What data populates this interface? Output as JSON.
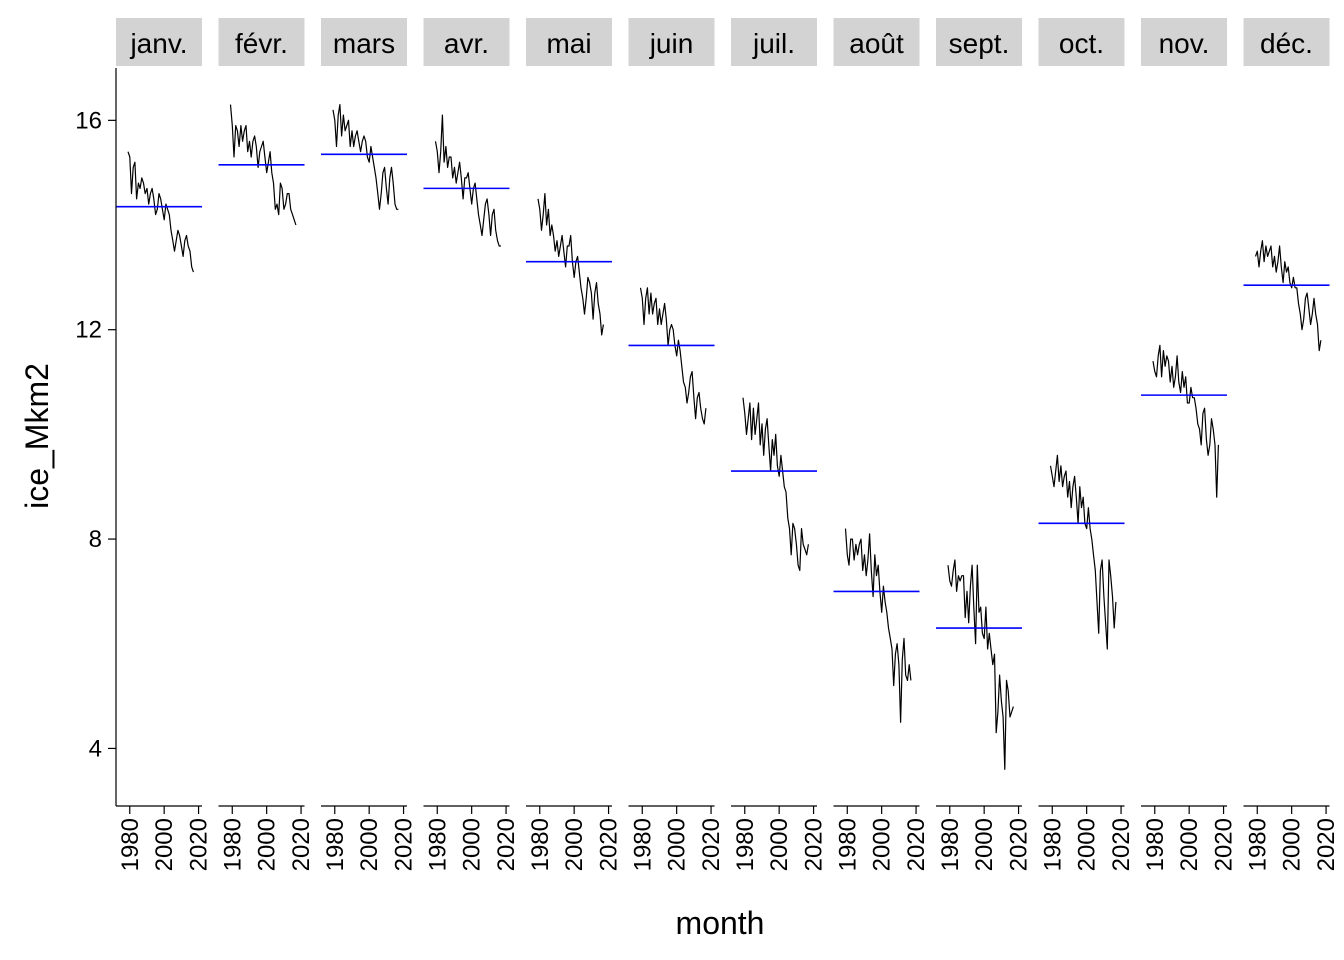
{
  "chart_data": {
    "type": "line",
    "facet_by": "month",
    "xlabel": "month",
    "ylabel": "ice_Mkm2",
    "y_ticks": [
      4,
      8,
      12,
      16
    ],
    "ylim": [
      2.9,
      17.0
    ],
    "x_ticks": [
      1980,
      2000,
      2020
    ],
    "xlim": [
      1972,
      2022
    ],
    "grid": false,
    "line_color": "#000000",
    "mean_line_color": "#0000ff",
    "strip_color": "#d3d3d3",
    "years": [
      1978,
      1979,
      1980,
      1981,
      1982,
      1983,
      1984,
      1985,
      1986,
      1987,
      1988,
      1989,
      1990,
      1991,
      1992,
      1993,
      1994,
      1995,
      1996,
      1997,
      1998,
      1999,
      2000,
      2001,
      2002,
      2003,
      2004,
      2005,
      2006,
      2007,
      2008,
      2009,
      2010,
      2011,
      2012,
      2013,
      2014,
      2015,
      2016,
      2017,
      2018,
      2019
    ],
    "panels": [
      {
        "label": "janv.",
        "mean": 14.35,
        "values": [
          null,
          15.4,
          15.3,
          14.6,
          15.1,
          15.2,
          14.5,
          14.8,
          14.7,
          14.9,
          14.8,
          14.6,
          14.7,
          14.4,
          14.6,
          14.7,
          14.5,
          14.2,
          14.3,
          14.6,
          14.5,
          14.3,
          14.1,
          14.4,
          14.3,
          14.2,
          13.9,
          13.7,
          13.5,
          13.7,
          13.9,
          13.8,
          13.6,
          13.4,
          13.7,
          13.8,
          13.6,
          13.5,
          13.2,
          13.1,
          null,
          null
        ]
      },
      {
        "label": "févr.",
        "mean": 15.15,
        "values": [
          null,
          16.3,
          15.9,
          15.3,
          15.9,
          15.8,
          15.5,
          15.9,
          15.6,
          15.8,
          15.9,
          15.4,
          15.6,
          15.3,
          15.6,
          15.7,
          15.5,
          15.1,
          15.4,
          15.5,
          15.6,
          15.3,
          15.0,
          15.2,
          15.4,
          15.0,
          14.8,
          14.3,
          14.4,
          14.2,
          14.8,
          14.7,
          14.3,
          14.4,
          14.6,
          14.6,
          14.3,
          14.2,
          14.1,
          14.0,
          null,
          null
        ]
      },
      {
        "label": "mars",
        "mean": 15.35,
        "values": [
          null,
          16.2,
          16.0,
          15.5,
          16.1,
          16.3,
          15.7,
          16.1,
          15.8,
          15.9,
          16.0,
          15.5,
          15.8,
          15.5,
          15.7,
          15.8,
          15.6,
          15.4,
          15.6,
          15.7,
          15.6,
          15.3,
          15.2,
          15.5,
          15.3,
          15.1,
          14.9,
          14.6,
          14.3,
          14.6,
          15.0,
          15.1,
          14.7,
          14.4,
          14.9,
          15.1,
          14.8,
          14.4,
          14.3,
          14.3,
          null,
          null
        ]
      },
      {
        "label": "avr.",
        "mean": 14.7,
        "values": [
          null,
          15.6,
          15.4,
          15.0,
          15.4,
          16.1,
          15.2,
          15.5,
          15.1,
          15.3,
          15.3,
          14.9,
          15.1,
          14.8,
          15.0,
          15.2,
          14.9,
          14.5,
          14.9,
          14.9,
          15.0,
          14.7,
          14.4,
          14.7,
          14.8,
          14.5,
          14.2,
          14.0,
          13.8,
          14.1,
          14.4,
          14.5,
          14.2,
          13.8,
          14.2,
          14.3,
          13.9,
          13.7,
          13.6,
          13.6,
          null,
          null
        ]
      },
      {
        "label": "mai",
        "mean": 13.3,
        "values": [
          null,
          14.5,
          14.3,
          13.9,
          14.2,
          14.6,
          14.0,
          14.3,
          13.8,
          14.0,
          13.8,
          13.5,
          13.7,
          13.4,
          13.6,
          13.8,
          13.5,
          13.2,
          13.6,
          13.6,
          13.8,
          13.3,
          13.0,
          13.3,
          13.4,
          13.1,
          12.8,
          12.6,
          12.3,
          12.6,
          13.0,
          12.9,
          12.7,
          12.2,
          12.7,
          12.9,
          12.5,
          12.3,
          11.9,
          12.1,
          null,
          null
        ]
      },
      {
        "label": "juin",
        "mean": 11.7,
        "values": [
          null,
          12.8,
          12.6,
          12.1,
          12.6,
          12.8,
          12.3,
          12.7,
          12.3,
          12.5,
          12.6,
          12.1,
          12.4,
          12.1,
          12.3,
          12.5,
          12.2,
          11.7,
          12.0,
          12.1,
          12.0,
          11.7,
          11.5,
          11.8,
          11.6,
          11.3,
          11.0,
          10.9,
          10.6,
          10.8,
          11.1,
          11.2,
          10.7,
          10.3,
          10.7,
          10.8,
          10.5,
          10.3,
          10.2,
          10.5,
          null,
          null
        ]
      },
      {
        "label": "juil.",
        "mean": 9.3,
        "values": [
          null,
          10.7,
          10.4,
          10.0,
          10.3,
          10.6,
          9.9,
          10.5,
          10.0,
          10.3,
          10.6,
          9.8,
          10.2,
          9.6,
          10.1,
          10.3,
          9.8,
          9.3,
          9.9,
          9.6,
          10.0,
          9.4,
          9.2,
          9.6,
          9.3,
          9.0,
          8.9,
          8.4,
          8.2,
          7.7,
          8.3,
          8.2,
          7.9,
          7.5,
          7.4,
          8.2,
          7.9,
          7.8,
          7.7,
          7.9,
          null,
          null
        ]
      },
      {
        "label": "août",
        "mean": 7.0,
        "values": [
          null,
          8.2,
          7.7,
          7.5,
          8.0,
          8.0,
          7.6,
          7.9,
          7.7,
          7.9,
          8.0,
          7.4,
          7.7,
          7.3,
          7.6,
          8.1,
          7.4,
          6.9,
          7.7,
          7.3,
          7.5,
          7.0,
          6.6,
          7.1,
          6.8,
          6.6,
          6.3,
          6.1,
          5.9,
          5.2,
          5.8,
          6.0,
          5.6,
          4.5,
          5.7,
          6.1,
          5.4,
          5.3,
          5.6,
          5.3,
          null,
          null
        ]
      },
      {
        "label": "sept.",
        "mean": 6.3,
        "values": [
          null,
          7.5,
          7.2,
          7.1,
          7.4,
          7.6,
          7.0,
          7.3,
          7.2,
          7.3,
          7.3,
          6.5,
          7.0,
          6.4,
          7.1,
          7.5,
          6.7,
          6.0,
          7.5,
          6.6,
          6.7,
          6.2,
          6.1,
          6.7,
          5.9,
          6.2,
          5.9,
          5.6,
          5.8,
          4.3,
          4.7,
          5.4,
          4.9,
          4.6,
          3.6,
          5.3,
          5.1,
          4.6,
          4.7,
          4.8,
          null,
          null
        ]
      },
      {
        "label": "oct.",
        "mean": 8.3,
        "values": [
          null,
          9.4,
          9.2,
          9.0,
          9.3,
          9.6,
          9.1,
          9.4,
          9.0,
          9.2,
          9.3,
          8.8,
          9.1,
          8.6,
          9.0,
          9.2,
          8.8,
          8.3,
          9.0,
          8.6,
          8.8,
          8.3,
          8.2,
          8.6,
          8.2,
          8.0,
          7.7,
          7.4,
          6.8,
          6.2,
          7.4,
          7.6,
          6.9,
          6.4,
          5.9,
          7.6,
          7.3,
          6.9,
          6.3,
          6.8,
          null,
          null
        ]
      },
      {
        "label": "nov.",
        "mean": 10.75,
        "values": [
          null,
          11.4,
          11.2,
          11.1,
          11.5,
          11.7,
          11.1,
          11.6,
          11.3,
          11.5,
          11.4,
          11.0,
          11.3,
          10.9,
          11.1,
          11.5,
          11.0,
          10.8,
          11.2,
          10.9,
          11.1,
          10.6,
          10.6,
          10.9,
          10.7,
          10.7,
          10.5,
          10.2,
          10.1,
          9.8,
          10.4,
          10.5,
          9.9,
          9.6,
          9.8,
          10.3,
          10.1,
          9.8,
          8.8,
          9.8,
          null,
          null
        ]
      },
      {
        "label": "déc.",
        "mean": 12.85,
        "values": [
          null,
          13.4,
          13.5,
          13.2,
          13.5,
          13.7,
          13.3,
          13.6,
          13.4,
          13.5,
          13.6,
          13.2,
          13.4,
          13.1,
          13.3,
          13.6,
          13.2,
          12.9,
          13.3,
          13.1,
          13.2,
          12.9,
          12.8,
          13.0,
          12.8,
          12.8,
          12.5,
          12.3,
          12.0,
          12.2,
          12.6,
          12.7,
          12.4,
          12.1,
          12.3,
          12.6,
          12.3,
          12.1,
          11.6,
          11.8,
          null,
          null
        ]
      }
    ]
  }
}
